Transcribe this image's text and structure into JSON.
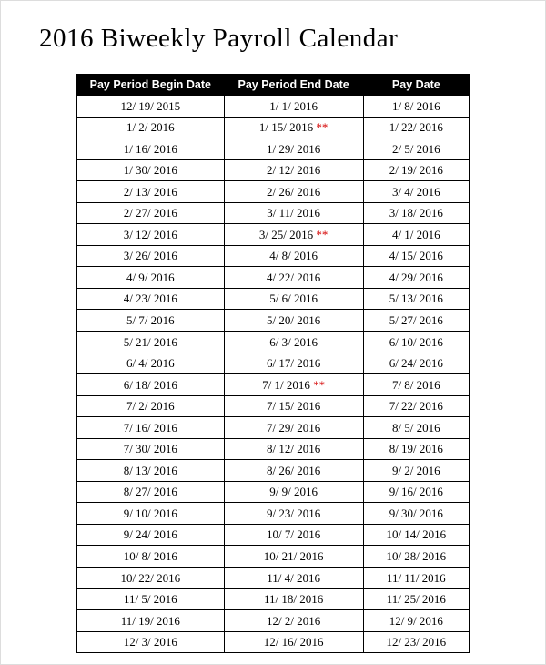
{
  "title": "2016 Biweekly Payroll Calendar",
  "table": {
    "type": "table",
    "header_bg": "#000000",
    "header_fg": "#ffffff",
    "border_color": "#000000",
    "asterisk_color": "#d40000",
    "columns": [
      "Pay Period Begin Date",
      "Pay Period End Date",
      "Pay Date"
    ],
    "rows": [
      {
        "begin": "12/ 19/ 2015",
        "end": "1/ 1/ 2016",
        "end_flag": false,
        "pay": "1/ 8/ 2016"
      },
      {
        "begin": "1/ 2/ 2016",
        "end": "1/ 15/ 2016",
        "end_flag": true,
        "pay": "1/ 22/ 2016"
      },
      {
        "begin": "1/ 16/ 2016",
        "end": "1/ 29/ 2016",
        "end_flag": false,
        "pay": "2/ 5/ 2016"
      },
      {
        "begin": "1/ 30/ 2016",
        "end": "2/ 12/ 2016",
        "end_flag": false,
        "pay": "2/ 19/ 2016"
      },
      {
        "begin": "2/ 13/ 2016",
        "end": "2/ 26/ 2016",
        "end_flag": false,
        "pay": "3/ 4/ 2016"
      },
      {
        "begin": "2/ 27/ 2016",
        "end": "3/ 11/ 2016",
        "end_flag": false,
        "pay": "3/ 18/ 2016"
      },
      {
        "begin": "3/ 12/ 2016",
        "end": "3/ 25/ 2016",
        "end_flag": true,
        "pay": "4/ 1/ 2016"
      },
      {
        "begin": "3/ 26/ 2016",
        "end": "4/ 8/ 2016",
        "end_flag": false,
        "pay": "4/ 15/ 2016"
      },
      {
        "begin": "4/ 9/ 2016",
        "end": "4/ 22/ 2016",
        "end_flag": false,
        "pay": "4/ 29/ 2016"
      },
      {
        "begin": "4/ 23/ 2016",
        "end": "5/ 6/ 2016",
        "end_flag": false,
        "pay": "5/ 13/ 2016"
      },
      {
        "begin": "5/ 7/ 2016",
        "end": "5/ 20/ 2016",
        "end_flag": false,
        "pay": "5/ 27/ 2016"
      },
      {
        "begin": "5/ 21/ 2016",
        "end": "6/ 3/ 2016",
        "end_flag": false,
        "pay": "6/ 10/ 2016"
      },
      {
        "begin": "6/ 4/ 2016",
        "end": "6/ 17/ 2016",
        "end_flag": false,
        "pay": "6/ 24/ 2016"
      },
      {
        "begin": "6/ 18/ 2016",
        "end": "7/ 1/ 2016",
        "end_flag": true,
        "pay": "7/ 8/ 2016"
      },
      {
        "begin": "7/ 2/ 2016",
        "end": "7/ 15/ 2016",
        "end_flag": false,
        "pay": "7/ 22/ 2016"
      },
      {
        "begin": "7/ 16/ 2016",
        "end": "7/ 29/ 2016",
        "end_flag": false,
        "pay": "8/ 5/ 2016"
      },
      {
        "begin": "7/ 30/ 2016",
        "end": "8/ 12/ 2016",
        "end_flag": false,
        "pay": "8/ 19/ 2016"
      },
      {
        "begin": "8/ 13/ 2016",
        "end": "8/ 26/ 2016",
        "end_flag": false,
        "pay": "9/ 2/ 2016"
      },
      {
        "begin": "8/ 27/ 2016",
        "end": "9/ 9/ 2016",
        "end_flag": false,
        "pay": "9/ 16/ 2016"
      },
      {
        "begin": "9/ 10/ 2016",
        "end": "9/ 23/ 2016",
        "end_flag": false,
        "pay": "9/ 30/ 2016"
      },
      {
        "begin": "9/ 24/ 2016",
        "end": "10/ 7/ 2016",
        "end_flag": false,
        "pay": "10/ 14/ 2016"
      },
      {
        "begin": "10/ 8/ 2016",
        "end": "10/ 21/ 2016",
        "end_flag": false,
        "pay": "10/ 28/ 2016"
      },
      {
        "begin": "10/ 22/ 2016",
        "end": "11/ 4/ 2016",
        "end_flag": false,
        "pay": "11/ 11/ 2016"
      },
      {
        "begin": "11/ 5/ 2016",
        "end": "11/ 18/ 2016",
        "end_flag": false,
        "pay": "11/ 25/ 2016"
      },
      {
        "begin": "11/ 19/ 2016",
        "end": "12/ 2/ 2016",
        "end_flag": false,
        "pay": "12/ 9/ 2016"
      },
      {
        "begin": "12/ 3/ 2016",
        "end": "12/ 16/ 2016",
        "end_flag": false,
        "pay": "12/ 23/ 2016"
      }
    ]
  }
}
